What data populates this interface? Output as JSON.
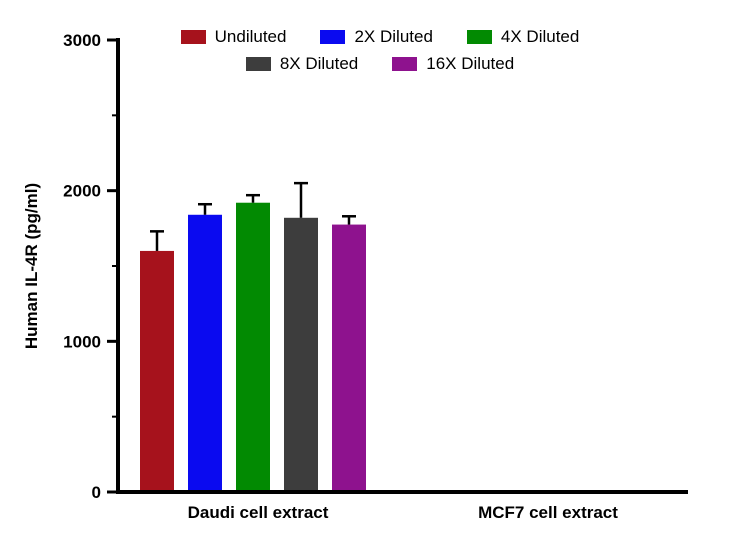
{
  "chart_data": {
    "type": "bar",
    "title": "",
    "ylabel": "Human IL-4R (pg/ml)",
    "xlabel": "",
    "ylim": [
      0,
      3000
    ],
    "yticks": [
      0,
      1000,
      2000,
      3000
    ],
    "minor_tick_step": 500,
    "grid": false,
    "legend_position": "top",
    "axis_color": "#000000",
    "categories": [
      "Daudi cell extract",
      "MCF7 cell extract"
    ],
    "series": [
      {
        "name": "Undiluted",
        "color": "#A6121C",
        "values": [
          1600,
          0
        ],
        "errors_plus": [
          130,
          0
        ]
      },
      {
        "name": "2X Diluted",
        "color": "#0A0AF0",
        "values": [
          1840,
          0
        ],
        "errors_plus": [
          70,
          0
        ]
      },
      {
        "name": "4X Diluted",
        "color": "#028A02",
        "values": [
          1920,
          0
        ],
        "errors_plus": [
          50,
          0
        ]
      },
      {
        "name": "8X Diluted",
        "color": "#3D3D3D",
        "values": [
          1820,
          0
        ],
        "errors_plus": [
          230,
          0
        ]
      },
      {
        "name": "16X Diluted",
        "color": "#8E128E",
        "values": [
          1775,
          0
        ],
        "errors_plus": [
          55,
          0
        ]
      }
    ]
  }
}
